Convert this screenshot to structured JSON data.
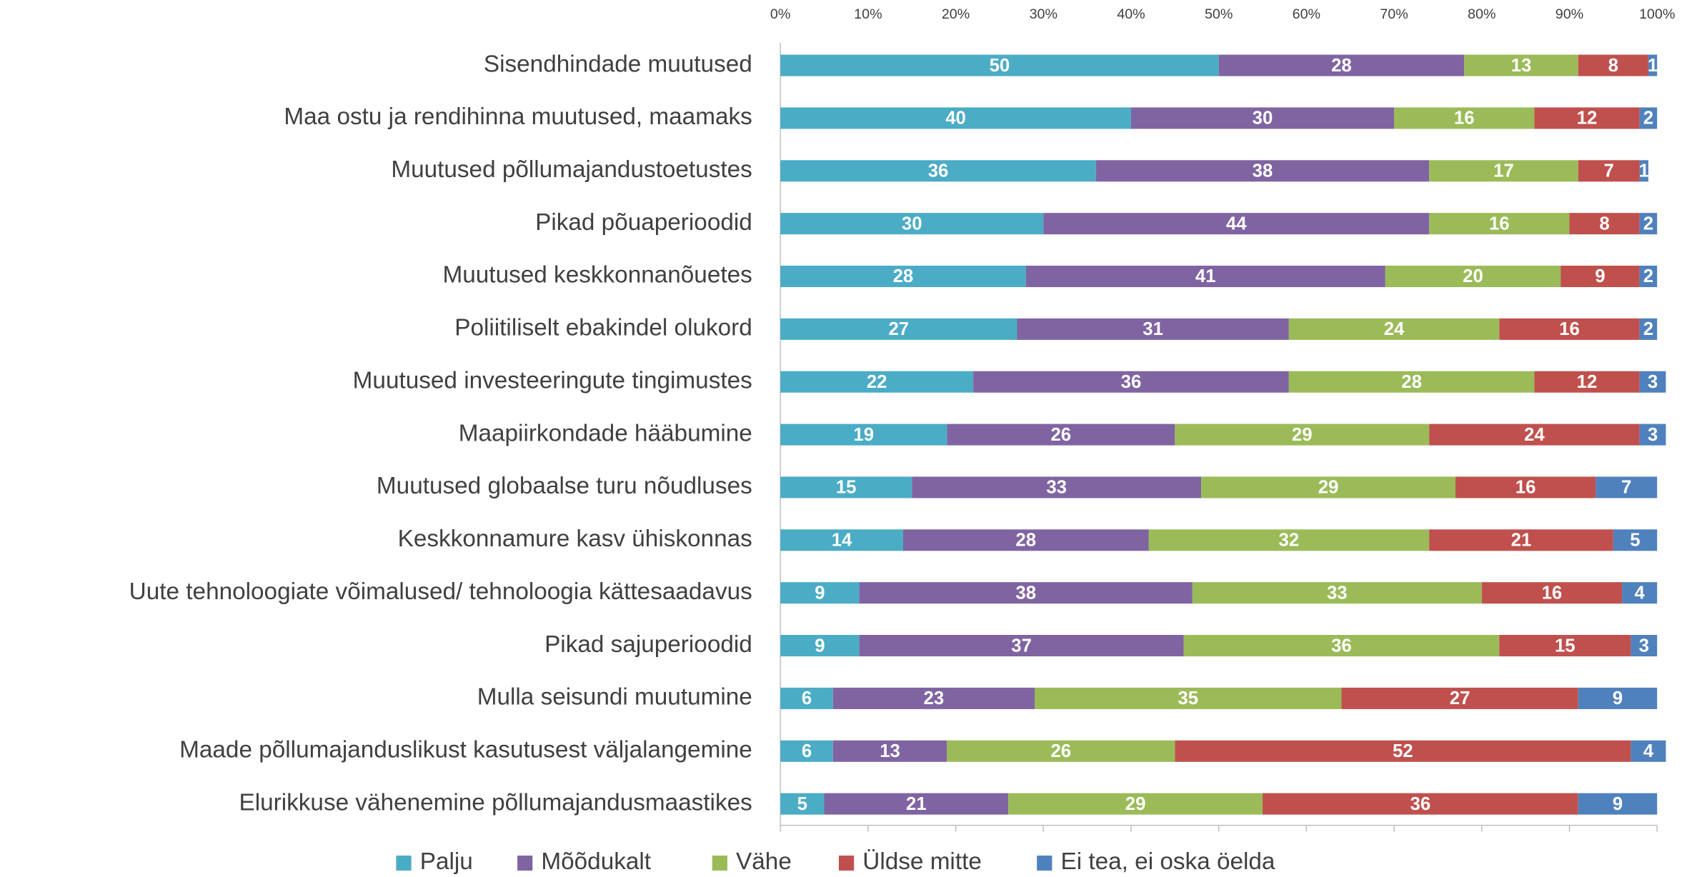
{
  "chart_data": {
    "type": "bar",
    "orientation": "horizontal",
    "stacked": true,
    "categories": [
      "Sisendhindade muutused",
      "Maa ostu ja rendihinna muutused, maamaks",
      "Muutused põllumajandustoetustes",
      "Pikad põuaperioodid",
      "Muutused keskkonnanõuetes",
      "Poliitiliselt ebakindel olukord",
      "Muutused investeeringute tingimustes",
      "Maapiirkondade hääbumine",
      "Muutused globaalse turu nõudluses",
      "Keskkonnamure kasv ühiskonnas",
      "Uute tehnoloogiate võimalused/ tehnoloogia kättesaadavus",
      "Pikad sajuperioodid",
      "Mulla seisundi muutumine",
      "Maade põllumajanduslikust kasutusest väljalangemine",
      "Elurikkuse vähenemine põllumajandusmaastikes"
    ],
    "series": [
      {
        "name": "Palju",
        "color": "#4bacc6",
        "values": [
          50,
          40,
          36,
          30,
          28,
          27,
          22,
          19,
          15,
          14,
          9,
          9,
          6,
          6,
          5
        ]
      },
      {
        "name": "Mõõdukalt",
        "color": "#8064a2",
        "values": [
          28,
          30,
          38,
          44,
          41,
          31,
          36,
          26,
          33,
          28,
          38,
          37,
          23,
          13,
          21
        ]
      },
      {
        "name": "Vähe",
        "color": "#9bbb59",
        "values": [
          13,
          16,
          17,
          16,
          20,
          24,
          28,
          29,
          29,
          32,
          33,
          36,
          35,
          26,
          29
        ]
      },
      {
        "name": "Üldse mitte",
        "color": "#c0504d",
        "values": [
          8,
          12,
          7,
          8,
          9,
          16,
          12,
          24,
          16,
          21,
          16,
          15,
          27,
          52,
          36
        ]
      },
      {
        "name": "Ei tea, ei oska öelda",
        "color": "#4f81bd",
        "values": [
          1,
          2,
          1,
          2,
          2,
          2,
          3,
          3,
          7,
          5,
          4,
          3,
          9,
          4,
          9
        ]
      }
    ],
    "xlim": [
      0,
      100
    ],
    "xticks": [
      {
        "value": 0,
        "label": "0%"
      },
      {
        "value": 10,
        "label": "10%"
      },
      {
        "value": 20,
        "label": "20%"
      },
      {
        "value": 30,
        "label": "30%"
      },
      {
        "value": 40,
        "label": "40%"
      },
      {
        "value": 50,
        "label": "50%"
      },
      {
        "value": 60,
        "label": "60%"
      },
      {
        "value": 70,
        "label": "70%"
      },
      {
        "value": 80,
        "label": "80%"
      },
      {
        "value": 90,
        "label": "90%"
      },
      {
        "value": 100,
        "label": "100%"
      }
    ],
    "legend": "bottom"
  }
}
